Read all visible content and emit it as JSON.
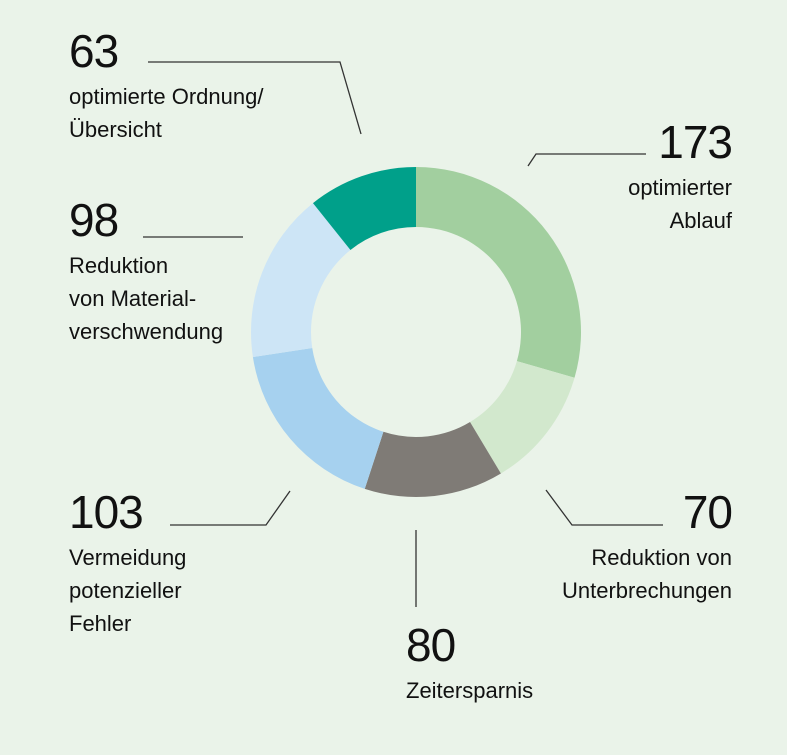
{
  "chart_data": {
    "type": "pie",
    "variant": "donut",
    "title": "",
    "slices": [
      {
        "value": 173,
        "label": "optimierter\nAblauf",
        "color": "#A2CF9F"
      },
      {
        "value": 70,
        "label": "Reduktion von\nUnterbrechungen",
        "color": "#D2E8CD"
      },
      {
        "value": 80,
        "label": "Zeitersparnis",
        "color": "#7F7B76"
      },
      {
        "value": 103,
        "label": "Vermeidung\npotenzieller\nFehler",
        "color": "#A6D1EF"
      },
      {
        "value": 98,
        "label": "Reduktion\nvon Material-\nverschwendung",
        "color": "#CDE5F6"
      },
      {
        "value": 63,
        "label": "optimierte Ordnung/\nÜbersicht",
        "color": "#00A08A"
      }
    ]
  }
}
